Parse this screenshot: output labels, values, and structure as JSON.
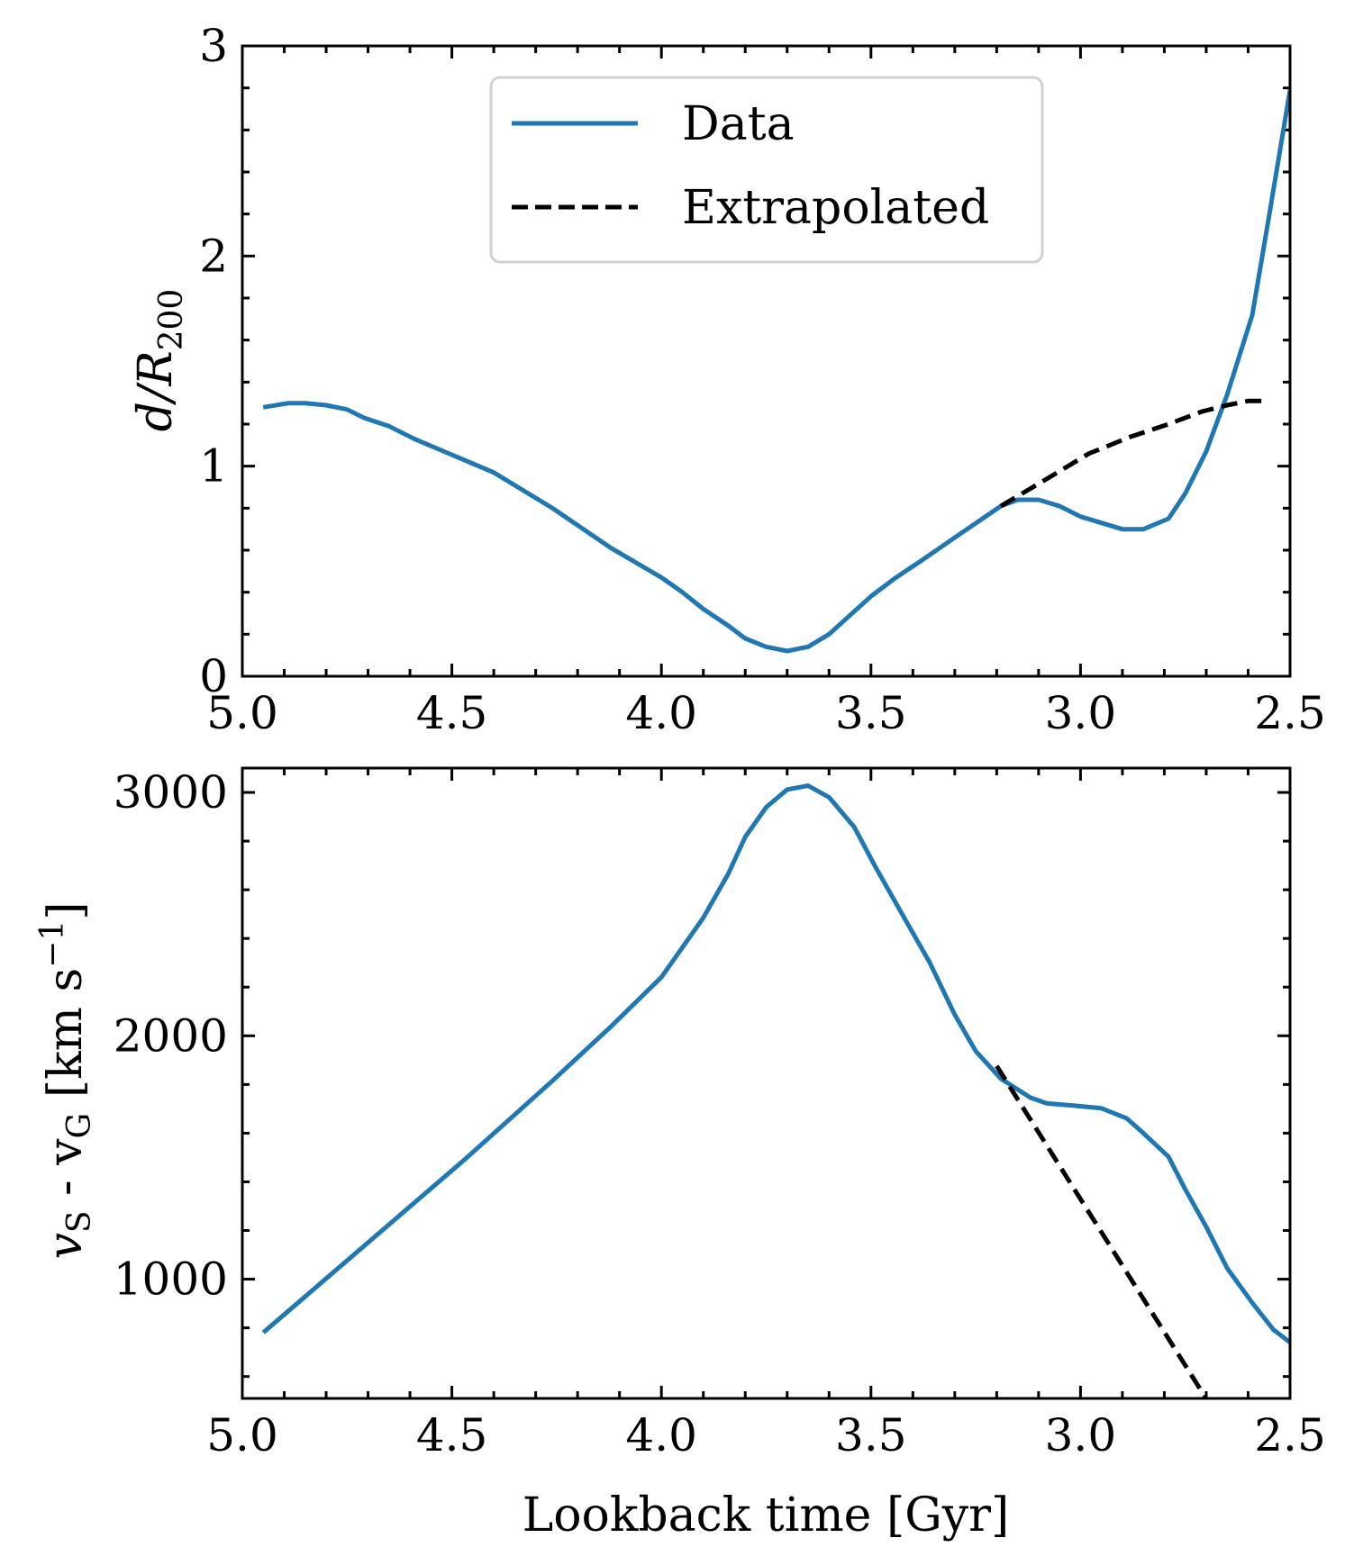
{
  "chart_data": [
    {
      "type": "line",
      "panel": "top",
      "ylabel_main": "d/R",
      "ylabel_sub": "200",
      "xlabel": "",
      "xlim": [
        5.0,
        2.5
      ],
      "ylim": [
        0,
        3
      ],
      "xticks": [
        "5.0",
        "4.5",
        "4.0",
        "3.5",
        "3.0",
        "2.5"
      ],
      "xtick_values": [
        5.0,
        4.5,
        4.0,
        3.5,
        3.0,
        2.5
      ],
      "yticks": [
        "0",
        "1",
        "2",
        "3"
      ],
      "ytick_values": [
        0,
        1,
        2,
        3
      ],
      "legend": {
        "placement": "top-center",
        "entries": [
          "Data",
          "Extrapolated"
        ]
      },
      "series": [
        {
          "name": "Data",
          "color": "#1f77b4",
          "style": "solid",
          "x": [
            4.95,
            4.89,
            4.85,
            4.8,
            4.75,
            4.71,
            4.65,
            4.59,
            4.4,
            4.26,
            4.12,
            4.0,
            3.95,
            3.9,
            3.84,
            3.8,
            3.75,
            3.7,
            3.65,
            3.6,
            3.55,
            3.5,
            3.44,
            3.38,
            3.3,
            3.19,
            3.15,
            3.1,
            3.05,
            3.0,
            2.95,
            2.9,
            2.85,
            2.79,
            2.75,
            2.7,
            2.65,
            2.59,
            2.55,
            2.5
          ],
          "y": [
            1.28,
            1.3,
            1.3,
            1.29,
            1.27,
            1.23,
            1.19,
            1.13,
            0.97,
            0.8,
            0.61,
            0.47,
            0.4,
            0.32,
            0.24,
            0.18,
            0.14,
            0.12,
            0.14,
            0.2,
            0.29,
            0.38,
            0.47,
            0.55,
            0.66,
            0.81,
            0.84,
            0.84,
            0.81,
            0.76,
            0.73,
            0.7,
            0.7,
            0.75,
            0.87,
            1.07,
            1.34,
            1.72,
            2.19,
            2.79
          ]
        },
        {
          "name": "Extrapolated",
          "color": "#000000",
          "style": "dashed",
          "x": [
            3.19,
            3.08,
            2.98,
            2.88,
            2.79,
            2.71,
            2.65,
            2.6,
            2.55
          ],
          "y": [
            0.81,
            0.94,
            1.06,
            1.14,
            1.2,
            1.26,
            1.29,
            1.31,
            1.31
          ]
        }
      ]
    },
    {
      "type": "line",
      "panel": "bottom",
      "ylabel_main": "v",
      "ylabel_sub1": "S",
      "ylabel_mid": " - v",
      "ylabel_sub2": "G",
      "ylabel_unit": " [km s",
      "ylabel_sup": "−1",
      "ylabel_end": "]",
      "xlabel": "Lookback time [Gyr]",
      "xlim": [
        5.0,
        2.5
      ],
      "ylim": [
        510,
        3100
      ],
      "xticks": [
        "5.0",
        "4.5",
        "4.0",
        "3.5",
        "3.0",
        "2.5"
      ],
      "xtick_values": [
        5.0,
        4.5,
        4.0,
        3.5,
        3.0,
        2.5
      ],
      "yticks": [
        "1000",
        "2000",
        "3000"
      ],
      "ytick_values": [
        1000,
        2000,
        3000
      ],
      "series": [
        {
          "name": "Data",
          "color": "#1f77b4",
          "style": "solid",
          "x": [
            4.95,
            4.47,
            4.26,
            4.12,
            4.0,
            3.95,
            3.9,
            3.84,
            3.8,
            3.75,
            3.7,
            3.65,
            3.6,
            3.54,
            3.49,
            3.43,
            3.36,
            3.3,
            3.25,
            3.19,
            3.12,
            3.08,
            3.02,
            2.95,
            2.89,
            2.85,
            2.79,
            2.75,
            2.7,
            2.65,
            2.59,
            2.54,
            2.5
          ],
          "y": [
            781,
            1491,
            1815,
            2039,
            2241,
            2363,
            2485,
            2667,
            2817,
            2939,
            3012,
            3028,
            2980,
            2858,
            2696,
            2513,
            2302,
            2087,
            1937,
            1824,
            1746,
            1722,
            1714,
            1702,
            1661,
            1600,
            1503,
            1369,
            1215,
            1045,
            903,
            793,
            740
          ]
        },
        {
          "name": "Extrapolated",
          "color": "#000000",
          "style": "dashed",
          "x": [
            3.2,
            2.7
          ],
          "y": [
            1876,
            509
          ]
        }
      ]
    }
  ]
}
